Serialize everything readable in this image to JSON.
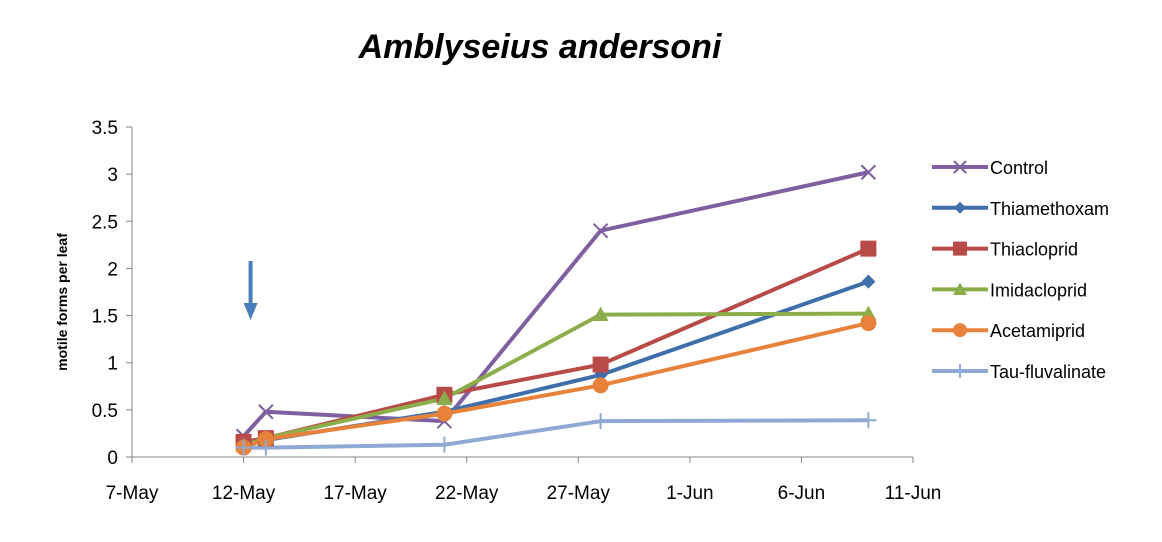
{
  "chart_data": {
    "type": "line",
    "title": "Amblyseius andersoni",
    "xlabel": "",
    "ylabel": "motile forms per leaf",
    "ylim": [
      0,
      3.5
    ],
    "yticks": [
      0,
      0.5,
      1,
      1.5,
      2,
      2.5,
      3,
      3.5
    ],
    "ytick_labels": [
      "0",
      "0.5",
      "1",
      "1.5",
      "2",
      "2.5",
      "3",
      "3.5"
    ],
    "xlim": [
      "2013-05-07",
      "2013-06-11"
    ],
    "xticks": [
      "2013-05-07",
      "2013-05-12",
      "2013-05-17",
      "2013-05-22",
      "2013-05-27",
      "2013-06-01",
      "2013-06-06",
      "2013-06-11"
    ],
    "xtick_labels": [
      "7-May",
      "12-May",
      "17-May",
      "22-May",
      "27-May",
      "1-Jun",
      "6-Jun",
      "11-Jun"
    ],
    "legend_position": "right",
    "grid": false,
    "annotation": {
      "type": "down-arrow",
      "x": "2013-05-12",
      "color": "#4A7EBB"
    },
    "series": [
      {
        "name": "Control",
        "color": "#7F5F9F",
        "marker": "x",
        "x": [
          "2013-05-12",
          "2013-05-13",
          "2013-05-21",
          "2013-05-28",
          "2013-06-09"
        ],
        "y": [
          0.22,
          0.48,
          0.38,
          2.4,
          3.02
        ]
      },
      {
        "name": "Thiamethoxam",
        "color": "#3F6FAA",
        "marker": "diamond",
        "x": [
          "2013-05-12",
          "2013-05-13",
          "2013-05-21",
          "2013-05-28",
          "2013-06-09"
        ],
        "y": [
          0.14,
          0.18,
          0.48,
          0.87,
          1.86
        ]
      },
      {
        "name": "Thiacloprid",
        "color": "#B84A47",
        "marker": "square",
        "x": [
          "2013-05-12",
          "2013-05-13",
          "2013-05-21",
          "2013-05-28",
          "2013-06-09"
        ],
        "y": [
          0.16,
          0.2,
          0.66,
          0.98,
          2.21
        ]
      },
      {
        "name": "Imidacloprid",
        "color": "#8CAE4A",
        "marker": "triangle",
        "x": [
          "2013-05-12",
          "2013-05-13",
          "2013-05-21",
          "2013-05-28",
          "2013-06-09"
        ],
        "y": [
          0.12,
          0.2,
          0.62,
          1.51,
          1.52
        ]
      },
      {
        "name": "Acetamiprid",
        "color": "#E8823A",
        "marker": "circle",
        "x": [
          "2013-05-12",
          "2013-05-13",
          "2013-05-21",
          "2013-05-28",
          "2013-06-09"
        ],
        "y": [
          0.1,
          0.19,
          0.46,
          0.76,
          1.42
        ]
      },
      {
        "name": "Tau-fluvalinate",
        "color": "#8FA9D5",
        "marker": "plus",
        "x": [
          "2013-05-12",
          "2013-05-13",
          "2013-05-21",
          "2013-05-28",
          "2013-06-09"
        ],
        "y": [
          0.1,
          0.1,
          0.13,
          0.38,
          0.39
        ]
      }
    ]
  }
}
